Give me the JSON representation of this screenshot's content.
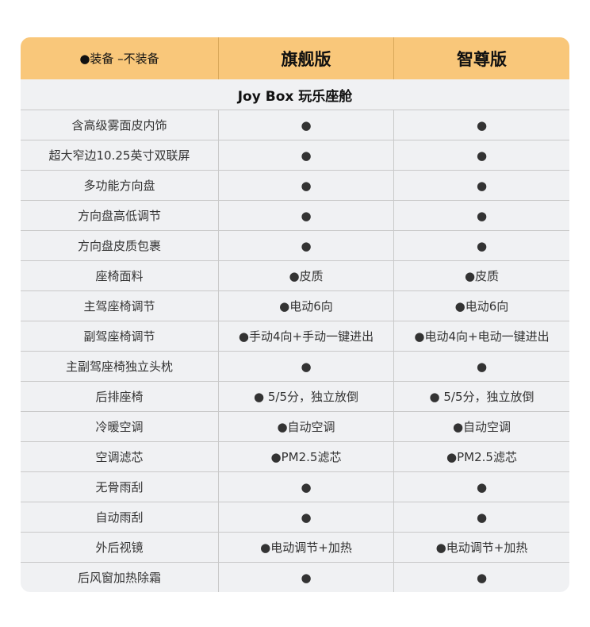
{
  "header": {
    "legend": "●装备  –不装备",
    "col1": "旗舰版",
    "col2": "智尊版"
  },
  "section_title": "Joy Box 玩乐座舱",
  "rows": [
    [
      "含高级雾面皮内饰",
      "●",
      "●"
    ],
    [
      "超大窄边10.25英寸双联屏",
      "●",
      "●"
    ],
    [
      "多功能方向盘",
      "●",
      "●"
    ],
    [
      "方向盘高低调节",
      "●",
      "●"
    ],
    [
      "方向盘皮质包裹",
      "●",
      "●"
    ],
    [
      "座椅面料",
      "●皮质",
      "●皮质"
    ],
    [
      "主驾座椅调节",
      "●电动6向",
      "●电动6向"
    ],
    [
      "副驾座椅调节",
      "●手动4向+手动一键进出",
      "●电动4向+电动一键进出"
    ],
    [
      "主副驾座椅独立头枕",
      "●",
      "●"
    ],
    [
      "后排座椅",
      "● 5/5分，独立放倒",
      "● 5/5分，独立放倒"
    ],
    [
      "冷暖空调",
      "●自动空调",
      "●自动空调"
    ],
    [
      "空调滤芯",
      "●PM2.5滤芯",
      "●PM2.5滤芯"
    ],
    [
      "无骨雨刮",
      "●",
      "●"
    ],
    [
      "自动雨刮",
      "●",
      "●"
    ],
    [
      "外后视镜",
      "●电动调节+加热",
      "●电动调节+加热"
    ],
    [
      "后风窗加热除霜",
      "●",
      "●"
    ]
  ],
  "colors": {
    "header_bg": "#f9c77a",
    "body_bg": "#f0f1f3",
    "border": "#c9c9c9"
  }
}
